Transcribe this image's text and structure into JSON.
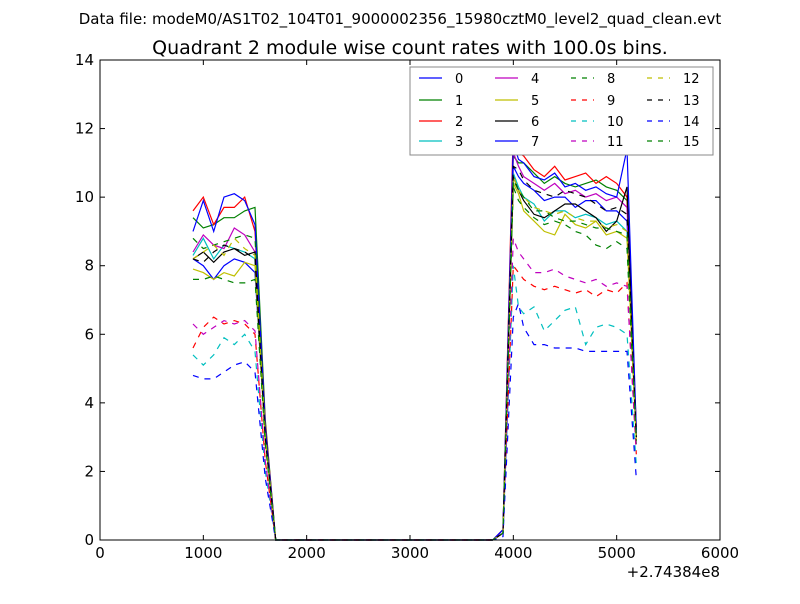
{
  "supertitle": "Data file: modeM0/AS1T02_104T01_9000002356_15980cztM0_level2_quad_clean.evt",
  "chart_data": {
    "type": "line",
    "title": "Quadrant 2 module wise count rates with 100.0s bins.",
    "xlabel": "",
    "ylabel": "",
    "x_offset_label": "+2.74384e8",
    "xlim": [
      0,
      6000
    ],
    "ylim": [
      0,
      14
    ],
    "xticks": [
      0,
      1000,
      2000,
      3000,
      4000,
      5000,
      6000
    ],
    "yticks": [
      0,
      2,
      4,
      6,
      8,
      10,
      12,
      14
    ],
    "grid": false,
    "legend_position": "top-right",
    "x": [
      900,
      1000,
      1100,
      1200,
      1300,
      1400,
      1500,
      1600,
      1700,
      1800,
      3800,
      3900,
      4000,
      4050,
      4100,
      4200,
      4300,
      4400,
      4500,
      4600,
      4700,
      4800,
      4900,
      5000,
      5100,
      5190
    ],
    "series": [
      {
        "name": "0",
        "color": "#0000ff",
        "dash": "solid",
        "values": [
          8.2,
          8.0,
          7.6,
          8.0,
          8.2,
          8.1,
          7.8,
          3.0,
          0.0,
          0.0,
          0.0,
          0.2,
          10.9,
          10.6,
          10.4,
          10.2,
          9.9,
          10.0,
          10.0,
          9.7,
          9.9,
          9.9,
          9.6,
          9.6,
          9.3,
          3.0
        ]
      },
      {
        "name": "1",
        "color": "#008000",
        "dash": "solid",
        "values": [
          9.4,
          9.1,
          9.2,
          9.4,
          9.4,
          9.6,
          9.7,
          3.5,
          0.0,
          0.0,
          0.0,
          0.3,
          11.2,
          11.0,
          11.0,
          10.7,
          10.4,
          10.6,
          10.4,
          10.3,
          10.4,
          10.5,
          10.3,
          10.2,
          9.9,
          3.2
        ]
      },
      {
        "name": "2",
        "color": "#ff0000",
        "dash": "solid",
        "values": [
          9.6,
          10.0,
          9.2,
          9.7,
          9.7,
          10.0,
          9.0,
          3.4,
          0.0,
          0.0,
          0.0,
          0.3,
          12.0,
          11.3,
          11.2,
          10.8,
          10.6,
          10.9,
          10.5,
          10.6,
          10.7,
          10.4,
          10.6,
          10.4,
          10.0,
          3.3
        ]
      },
      {
        "name": "3",
        "color": "#00bfbf",
        "dash": "solid",
        "values": [
          8.3,
          8.8,
          8.2,
          8.6,
          8.5,
          8.4,
          8.2,
          3.0,
          0.0,
          0.0,
          0.0,
          0.2,
          10.7,
          10.3,
          10.0,
          9.8,
          9.3,
          9.6,
          9.6,
          9.4,
          9.5,
          9.4,
          9.2,
          9.3,
          9.0,
          3.0
        ]
      },
      {
        "name": "4",
        "color": "#bf00bf",
        "dash": "solid",
        "values": [
          8.4,
          8.9,
          8.6,
          8.5,
          9.1,
          8.9,
          8.4,
          3.1,
          0.0,
          0.0,
          0.0,
          0.3,
          11.3,
          10.9,
          10.6,
          10.4,
          10.2,
          10.4,
          10.1,
          10.2,
          10.0,
          10.1,
          9.9,
          10.0,
          9.7,
          3.1
        ]
      },
      {
        "name": "5",
        "color": "#bfbf00",
        "dash": "solid",
        "values": [
          7.9,
          7.8,
          7.6,
          7.8,
          7.7,
          8.1,
          8.0,
          2.9,
          0.0,
          0.0,
          0.0,
          0.2,
          10.4,
          10.1,
          9.6,
          9.3,
          9.0,
          8.9,
          9.5,
          9.2,
          9.1,
          9.3,
          8.9,
          9.0,
          8.8,
          2.9
        ]
      },
      {
        "name": "6",
        "color": "#000000",
        "dash": "solid",
        "values": [
          8.2,
          8.4,
          8.1,
          8.4,
          8.5,
          8.3,
          8.4,
          3.0,
          0.0,
          0.0,
          0.0,
          0.2,
          10.6,
          10.2,
          9.9,
          9.5,
          9.4,
          9.6,
          9.8,
          9.8,
          9.6,
          9.4,
          9.0,
          9.3,
          10.3,
          3.0
        ]
      },
      {
        "name": "7",
        "color": "#0000ff",
        "dash": "solid",
        "values": [
          9.0,
          9.9,
          9.0,
          10.0,
          10.1,
          9.9,
          9.2,
          3.3,
          0.0,
          0.0,
          0.0,
          0.3,
          11.6,
          11.1,
          11.0,
          10.6,
          10.5,
          10.7,
          10.3,
          10.4,
          10.2,
          10.3,
          10.1,
          10.0,
          11.4,
          3.2
        ]
      },
      {
        "name": "8",
        "color": "#008000",
        "dash": "dashed",
        "values": [
          8.8,
          8.5,
          8.6,
          8.7,
          8.8,
          8.9,
          8.8,
          3.1,
          0.0,
          0.0,
          0.0,
          0.2,
          10.3,
          9.9,
          9.7,
          9.4,
          9.2,
          9.3,
          9.2,
          9.0,
          8.9,
          8.6,
          8.5,
          8.7,
          8.5,
          2.8
        ]
      },
      {
        "name": "9",
        "color": "#ff0000",
        "dash": "dashed",
        "values": [
          5.6,
          6.2,
          6.5,
          6.3,
          6.4,
          6.3,
          6.0,
          2.3,
          0.0,
          0.0,
          0.0,
          0.2,
          8.0,
          7.8,
          7.6,
          7.4,
          7.3,
          7.4,
          7.3,
          7.2,
          7.3,
          7.1,
          7.3,
          7.2,
          7.5,
          2.5
        ]
      },
      {
        "name": "10",
        "color": "#00bfbf",
        "dash": "dashed",
        "values": [
          5.4,
          5.1,
          5.4,
          5.9,
          5.7,
          6.0,
          5.5,
          2.0,
          0.0,
          0.0,
          0.0,
          0.2,
          8.0,
          6.8,
          6.6,
          6.8,
          6.1,
          6.4,
          6.7,
          6.8,
          5.7,
          6.2,
          6.3,
          6.2,
          6.0,
          2.2
        ]
      },
      {
        "name": "11",
        "color": "#bf00bf",
        "dash": "dashed",
        "values": [
          6.3,
          6.0,
          6.2,
          6.4,
          6.3,
          6.4,
          6.1,
          2.3,
          0.0,
          0.0,
          0.0,
          0.2,
          8.8,
          8.4,
          8.2,
          7.8,
          7.8,
          7.9,
          7.7,
          7.6,
          7.5,
          7.6,
          7.4,
          7.5,
          7.4,
          2.6
        ]
      },
      {
        "name": "12",
        "color": "#bfbf00",
        "dash": "dashed",
        "values": [
          8.2,
          8.4,
          8.6,
          8.3,
          8.8,
          8.5,
          8.3,
          3.0,
          0.0,
          0.0,
          0.0,
          0.2,
          10.6,
          10.2,
          10.0,
          9.7,
          9.6,
          9.5,
          9.6,
          9.4,
          9.3,
          9.3,
          9.1,
          9.2,
          9.0,
          2.9
        ]
      },
      {
        "name": "13",
        "color": "#000000",
        "dash": "dashed",
        "values": [
          8.2,
          8.1,
          8.4,
          8.6,
          8.5,
          8.4,
          8.2,
          3.0,
          0.0,
          0.0,
          0.0,
          0.2,
          10.9,
          10.8,
          10.5,
          10.2,
          10.1,
          10.0,
          10.2,
          10.1,
          10.0,
          9.8,
          9.6,
          9.7,
          9.5,
          3.0
        ]
      },
      {
        "name": "14",
        "color": "#0000ff",
        "dash": "dashed",
        "values": [
          4.8,
          4.7,
          4.7,
          4.9,
          5.1,
          5.2,
          4.9,
          1.8,
          0.0,
          0.0,
          0.0,
          0.1,
          6.5,
          6.9,
          6.2,
          5.7,
          5.7,
          5.6,
          5.6,
          5.6,
          5.5,
          5.5,
          5.5,
          5.5,
          5.5,
          1.8
        ]
      },
      {
        "name": "15",
        "color": "#008000",
        "dash": "dashed",
        "values": [
          7.6,
          7.6,
          7.7,
          7.6,
          7.5,
          7.5,
          7.6,
          2.8,
          0.0,
          0.0,
          0.0,
          0.2,
          10.5,
          10.2,
          10.0,
          9.6,
          9.6,
          9.4,
          9.3,
          9.3,
          9.2,
          9.1,
          9.1,
          9.0,
          8.9,
          2.9
        ]
      }
    ]
  }
}
